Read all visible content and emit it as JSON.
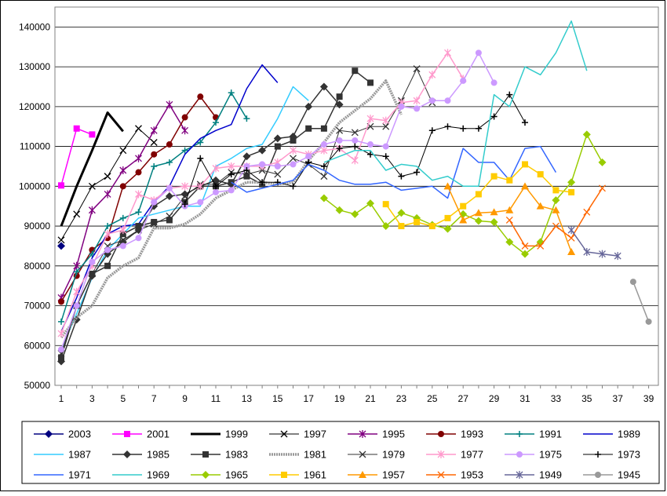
{
  "chart_data": {
    "type": "line",
    "title": "",
    "xlabel": "",
    "ylabel": "",
    "xlim": [
      1,
      39
    ],
    "ylim": [
      50000,
      145000
    ],
    "x_tick_labels": [
      "1",
      "3",
      "5",
      "7",
      "9",
      "11",
      "13",
      "15",
      "17",
      "19",
      "21",
      "23",
      "25",
      "27",
      "29",
      "31",
      "33",
      "35",
      "37",
      "39"
    ],
    "y_tick_labels": [
      "50000",
      "60000",
      "70000",
      "80000",
      "90000",
      "100000",
      "110000",
      "120000",
      "130000",
      "140000"
    ],
    "grid": "horizontal",
    "legend_position": "bottom",
    "series": [
      {
        "name": "2003",
        "color": "#000080",
        "marker": "diamond",
        "width": 1.5,
        "x": [
          1
        ],
        "y": [
          85000
        ]
      },
      {
        "name": "2001",
        "color": "#ff00ff",
        "marker": "square",
        "width": 1.5,
        "x": [
          1,
          2,
          3
        ],
        "y": [
          100200,
          114500,
          113000
        ]
      },
      {
        "name": "1999",
        "color": "#000000",
        "marker": "none",
        "width": 3,
        "x": [
          1,
          2,
          3,
          4,
          5
        ],
        "y": [
          90000,
          100000,
          109000,
          118500,
          113800
        ]
      },
      {
        "name": "1997",
        "color": "#000000",
        "marker": "x",
        "width": 1,
        "x": [
          1,
          2,
          3,
          4,
          5,
          6,
          7
        ],
        "y": [
          86500,
          93000,
          100000,
          102500,
          109000,
          114500,
          111000
        ]
      },
      {
        "name": "1995",
        "color": "#800080",
        "marker": "star",
        "width": 1.5,
        "x": [
          1,
          2,
          3,
          4,
          5,
          6,
          7,
          8,
          9
        ],
        "y": [
          72000,
          80000,
          94000,
          98000,
          104000,
          107000,
          114000,
          120500,
          114000
        ]
      },
      {
        "name": "1993",
        "color": "#800000",
        "marker": "circle",
        "width": 1.5,
        "x": [
          1,
          2,
          3,
          4,
          5,
          6,
          7,
          8,
          9,
          10,
          11
        ],
        "y": [
          71000,
          77500,
          84000,
          87000,
          100000,
          103500,
          108000,
          110500,
          117300,
          122500,
          117300
        ]
      },
      {
        "name": "1991",
        "color": "#008080",
        "marker": "plus",
        "width": 1.5,
        "x": [
          1,
          2,
          3,
          4,
          5,
          6,
          7,
          8,
          9,
          10,
          11,
          12,
          13
        ],
        "y": [
          66000,
          78500,
          83000,
          90000,
          92000,
          93500,
          105000,
          106000,
          109000,
          111000,
          116000,
          123500,
          117000
        ]
      },
      {
        "name": "1989",
        "color": "#0000cc",
        "marker": "none",
        "width": 1.5,
        "x": [
          1,
          2,
          3,
          4,
          5,
          6,
          7,
          8,
          9,
          10,
          11,
          12,
          13,
          14,
          15
        ],
        "y": [
          63500,
          72000,
          82000,
          88000,
          90000,
          90500,
          96000,
          100000,
          108000,
          112000,
          114000,
          115500,
          124500,
          130500,
          126000
        ]
      },
      {
        "name": "1987",
        "color": "#33ccff",
        "marker": "none",
        "width": 1.5,
        "x": [
          1,
          2,
          3,
          4,
          5,
          6,
          7,
          8,
          9,
          10,
          11,
          12,
          13,
          14,
          15,
          16,
          17
        ],
        "y": [
          59000,
          68000,
          77000,
          84000,
          88000,
          92000,
          93000,
          94000,
          95000,
          95000,
          105000,
          107000,
          109500,
          110500,
          117000,
          125000,
          121500
        ]
      },
      {
        "name": "1985",
        "color": "#333333",
        "marker": "diamond",
        "width": 1.5,
        "x": [
          1,
          2,
          3,
          4,
          5,
          6,
          7,
          8,
          9,
          10,
          11,
          12,
          13,
          14,
          15,
          16,
          17,
          18,
          19
        ],
        "y": [
          56000,
          66500,
          77500,
          83000,
          86000,
          89000,
          95000,
          97500,
          98000,
          100000,
          101500,
          100500,
          107500,
          109000,
          112000,
          112500,
          120000,
          125000,
          120500
        ]
      },
      {
        "name": "1983",
        "color": "#333333",
        "marker": "square",
        "width": 1.5,
        "x": [
          1,
          2,
          3,
          4,
          5,
          6,
          7,
          8,
          9,
          10,
          11,
          12,
          13,
          14,
          15,
          16,
          17,
          18,
          19,
          20,
          21
        ],
        "y": [
          57000,
          70000,
          78000,
          80000,
          88000,
          90000,
          91000,
          91500,
          96000,
          100000,
          100000,
          101000,
          102500,
          100500,
          110000,
          111500,
          114500,
          114500,
          122500,
          129000,
          126000
        ]
      },
      {
        "name": "1981",
        "color": "#999999",
        "marker": "none",
        "width": 3.5,
        "x": [
          1,
          2,
          3,
          4,
          5,
          6,
          7,
          8,
          9,
          10,
          11,
          12,
          13,
          14,
          15,
          16,
          17,
          18,
          19,
          20,
          21,
          22,
          23
        ],
        "y": [
          62000,
          67000,
          70000,
          77000,
          80000,
          82000,
          89500,
          89500,
          90500,
          93000,
          97000,
          99000,
          101000,
          101000,
          100500,
          101000,
          106500,
          111000,
          116000,
          119000,
          122000,
          126500,
          118000
        ]
      },
      {
        "name": "1979",
        "color": "#333333",
        "marker": "x",
        "width": 1,
        "x": [
          1,
          2,
          3,
          4,
          5,
          6,
          7,
          8,
          9,
          10,
          11,
          12,
          13,
          14,
          15,
          16,
          17,
          18,
          19,
          20,
          21,
          22,
          23,
          24,
          25
        ],
        "y": [
          58000,
          70000,
          78000,
          85000,
          86500,
          89000,
          90500,
          92500,
          97500,
          100500,
          100500,
          103500,
          103000,
          104000,
          103000,
          107000,
          105500,
          102500,
          114000,
          113500,
          115000,
          115000,
          121500,
          129500,
          121000
        ]
      },
      {
        "name": "1977",
        "color": "#ff99cc",
        "marker": "star",
        "width": 1.5,
        "x": [
          1,
          2,
          3,
          4,
          5,
          6,
          7,
          8,
          9,
          10,
          11,
          12,
          13,
          14,
          15,
          16,
          17,
          18,
          19,
          20,
          21,
          22,
          23,
          24,
          25,
          26,
          27
        ],
        "y": [
          63000,
          73500,
          80000,
          88000,
          89000,
          98000,
          96500,
          99500,
          100000,
          100000,
          104500,
          105000,
          105000,
          105000,
          106000,
          109000,
          108000,
          109000,
          109500,
          106500,
          117000,
          116500,
          121000,
          121500,
          128000,
          133500,
          127000
        ]
      },
      {
        "name": "1975",
        "color": "#cc99ff",
        "marker": "circle",
        "width": 1.5,
        "x": [
          1,
          2,
          3,
          4,
          5,
          6,
          7,
          8,
          9,
          10,
          11,
          12,
          13,
          14,
          15,
          16,
          17,
          18,
          19,
          20,
          21,
          22,
          23,
          24,
          25,
          26,
          27,
          28,
          29
        ],
        "y": [
          59000,
          70000,
          81000,
          84000,
          85000,
          87000,
          96000,
          99500,
          95000,
          96000,
          98500,
          99000,
          105000,
          105500,
          105000,
          105500,
          107500,
          110500,
          111500,
          111500,
          110500,
          110000,
          120000,
          119500,
          121500,
          121500,
          126500,
          133500,
          126000
        ]
      },
      {
        "name": "1973",
        "color": "#000000",
        "marker": "plus",
        "width": 1,
        "x": [
          9,
          10,
          11,
          12,
          13,
          14,
          15,
          16,
          17,
          18,
          19,
          20,
          21,
          22,
          23,
          24,
          25,
          26,
          27,
          28,
          29,
          30,
          31
        ],
        "y": [
          95500,
          107000,
          100000,
          103000,
          104000,
          101000,
          101000,
          100000,
          106000,
          105000,
          109500,
          110000,
          108000,
          107500,
          102500,
          103500,
          114000,
          115000,
          114500,
          114500,
          117500,
          123000,
          116000
        ]
      },
      {
        "name": "1971",
        "color": "#3366ff",
        "marker": "none",
        "width": 1.5,
        "x": [
          12,
          13,
          14,
          15,
          16,
          17,
          18,
          19,
          20,
          21,
          22,
          23,
          24,
          25,
          26,
          27,
          28,
          29,
          30,
          31,
          32,
          33
        ],
        "y": [
          101000,
          98500,
          99500,
          100500,
          101500,
          105500,
          104000,
          101500,
          100500,
          100500,
          101000,
          99000,
          99500,
          100000,
          97000,
          109500,
          106000,
          106000,
          101500,
          109500,
          110000,
          103500
        ]
      },
      {
        "name": "1969",
        "color": "#33cccc",
        "marker": "none",
        "width": 1.5,
        "x": [
          18,
          19,
          20,
          21,
          22,
          23,
          24,
          25,
          26,
          27,
          28,
          29,
          30,
          31,
          32,
          33,
          34,
          35
        ],
        "y": [
          106000,
          107500,
          109000,
          109000,
          104000,
          105500,
          105000,
          101500,
          102500,
          100000,
          100000,
          123000,
          120000,
          130000,
          128000,
          133500,
          141500,
          129000
        ]
      },
      {
        "name": "1965",
        "color": "#99cc00",
        "marker": "diamond",
        "width": 1.5,
        "x": [
          18,
          19,
          20,
          21,
          22,
          23,
          24,
          25,
          26,
          27,
          28,
          29,
          30,
          31,
          32,
          33,
          34,
          35,
          36
        ],
        "y": [
          97000,
          94000,
          93000,
          95700,
          90000,
          93300,
          92000,
          90300,
          89300,
          93000,
          91300,
          91000,
          86000,
          83000,
          86000,
          96500,
          101000,
          113000,
          106000
        ]
      },
      {
        "name": "1961",
        "color": "#ffcc00",
        "marker": "square",
        "width": 1.5,
        "x": [
          22,
          23,
          24,
          25,
          26,
          27,
          28,
          29,
          30,
          31,
          32,
          33,
          34
        ],
        "y": [
          95500,
          90000,
          91000,
          90000,
          92000,
          95000,
          98000,
          102500,
          101500,
          105500,
          103000,
          99000,
          98500
        ]
      },
      {
        "name": "1957",
        "color": "#ff9900",
        "marker": "triangle",
        "width": 1.5,
        "x": [
          26,
          27,
          28,
          29,
          30,
          31,
          32,
          33,
          34
        ],
        "y": [
          100000,
          91500,
          93300,
          93500,
          94000,
          100000,
          95000,
          94000,
          83500
        ]
      },
      {
        "name": "1953",
        "color": "#ff6600",
        "marker": "x",
        "width": 1.5,
        "x": [
          30,
          31,
          32,
          33,
          34,
          35,
          36
        ],
        "y": [
          91500,
          85000,
          85000,
          90000,
          87000,
          93500,
          99500
        ]
      },
      {
        "name": "1949",
        "color": "#666699",
        "marker": "star",
        "width": 1.5,
        "x": [
          34,
          35,
          36,
          37
        ],
        "y": [
          89000,
          83500,
          83000,
          82500
        ]
      },
      {
        "name": "1945",
        "color": "#999999",
        "marker": "circle",
        "width": 1.5,
        "x": [
          38,
          39
        ],
        "y": [
          76000,
          66000
        ]
      }
    ]
  }
}
